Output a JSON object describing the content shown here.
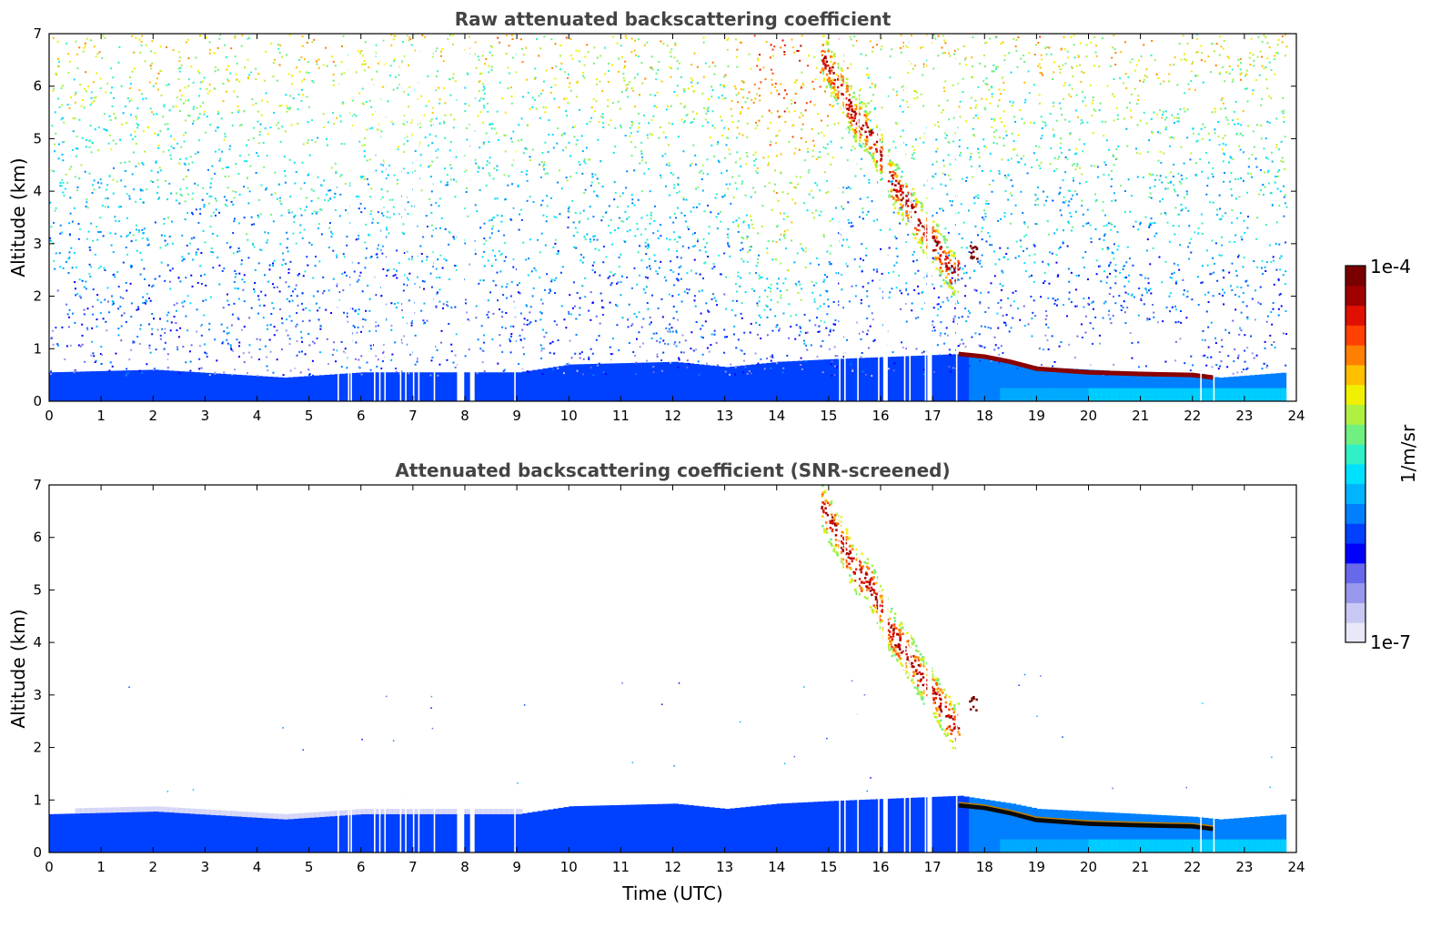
{
  "chart_data": [
    {
      "type": "heatmap",
      "title": "Raw attenuated backscattering coefficient",
      "xlabel": "",
      "ylabel": "Altitude (km)",
      "xlim": [
        0,
        24
      ],
      "ylim": [
        0,
        7
      ],
      "x_ticks": [
        "0",
        "1",
        "2",
        "3",
        "4",
        "5",
        "6",
        "7",
        "8",
        "9",
        "10",
        "11",
        "12",
        "13",
        "14",
        "15",
        "16",
        "17",
        "18",
        "19",
        "20",
        "21",
        "22",
        "23",
        "24"
      ],
      "y_ticks": [
        "0",
        "1",
        "2",
        "3",
        "4",
        "5",
        "6",
        "7"
      ],
      "screened": false,
      "features": {
        "boundary_layer_top_km": [
          [
            0,
            0.55
          ],
          [
            2,
            0.6
          ],
          [
            4.5,
            0.45
          ],
          [
            6,
            0.55
          ],
          [
            9,
            0.55
          ],
          [
            10,
            0.7
          ],
          [
            12,
            0.75
          ],
          [
            13,
            0.65
          ],
          [
            14,
            0.75
          ],
          [
            15,
            0.8
          ],
          [
            17.5,
            0.9
          ],
          [
            18.5,
            0.75
          ],
          [
            19,
            0.65
          ],
          [
            20,
            0.6
          ],
          [
            22,
            0.5
          ],
          [
            22.5,
            0.45
          ],
          [
            23.8,
            0.55
          ]
        ],
        "cloud_layer": [
          [
            17.5,
            0.9
          ],
          [
            18,
            0.85
          ],
          [
            18.5,
            0.75
          ],
          [
            19,
            0.62
          ],
          [
            20,
            0.55
          ],
          [
            21,
            0.52
          ],
          [
            22,
            0.5
          ],
          [
            22.4,
            0.45
          ]
        ],
        "falling_streak": [
          [
            14.8,
            6.7
          ],
          [
            15.2,
            6.0
          ],
          [
            15.5,
            5.4
          ],
          [
            15.8,
            5.1
          ],
          [
            16.2,
            4.2
          ],
          [
            16.5,
            3.8
          ],
          [
            16.8,
            3.3
          ],
          [
            17.1,
            2.9
          ],
          [
            17.4,
            2.4
          ],
          [
            17.8,
            2.9
          ]
        ],
        "aerosol_plume": {
          "x": [
            13.0,
            15.2
          ],
          "y": [
            1.5,
            7.0
          ]
        },
        "data_gaps_utc": [
          5.55,
          5.75,
          5.8,
          6.25,
          6.35,
          6.45,
          6.75,
          6.85,
          7.0,
          7.1,
          7.4,
          7.85,
          7.9,
          8.1,
          8.95,
          15.2,
          15.3,
          15.55,
          15.95,
          16.05,
          16.45,
          16.55,
          16.85,
          16.9,
          17.45,
          22.15,
          22.4
        ]
      }
    },
    {
      "type": "heatmap",
      "title": "Attenuated backscattering coefficient (SNR-screened)",
      "xlabel": "Time (UTC)",
      "ylabel": "Altitude (km)",
      "xlim": [
        0,
        24
      ],
      "ylim": [
        0,
        7
      ],
      "x_ticks": [
        "0",
        "1",
        "2",
        "3",
        "4",
        "5",
        "6",
        "7",
        "8",
        "9",
        "10",
        "11",
        "12",
        "13",
        "14",
        "15",
        "16",
        "17",
        "18",
        "19",
        "20",
        "21",
        "22",
        "23",
        "24"
      ],
      "y_ticks": [
        "0",
        "1",
        "2",
        "3",
        "4",
        "5",
        "6",
        "7"
      ],
      "screened": true
    }
  ],
  "colorbar": {
    "label": "1/m/sr",
    "max_label": "1e-4",
    "min_label": "1e-7",
    "scale": "log",
    "colors": [
      "#e8e8f8",
      "#c8c8f4",
      "#9898ee",
      "#6868ea",
      "#0000ff",
      "#0040ff",
      "#0080ff",
      "#00b4ff",
      "#00e0ff",
      "#30f0c8",
      "#70f080",
      "#b0f040",
      "#f0f000",
      "#ffc000",
      "#ff8000",
      "#ff4000",
      "#e01000",
      "#a00000",
      "#7a0000"
    ]
  }
}
